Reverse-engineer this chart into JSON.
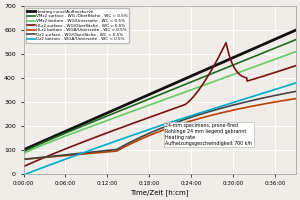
{
  "xlabel": "Time/Zeit [h:cm]",
  "ylim": [
    0,
    700
  ],
  "xlim": [
    0,
    2340
  ],
  "yticks": [
    0,
    100,
    200,
    300,
    400,
    500,
    600,
    700
  ],
  "xticks": [
    0,
    360,
    720,
    1080,
    1440,
    1800,
    2160
  ],
  "xtick_labels": [
    "0:00:00",
    "0:06:00",
    "0:12:00",
    "0:18:00",
    "0:24:00",
    "0:30:00",
    "0:36:00"
  ],
  "annotation": "24-mm specimens, prone-fired\nRohlinge 24 mm liegend gebrannt\nHeating rate\nAufheizungsgeschwindigkeit 700 k/h",
  "legend": [
    {
      "label": "Heating curve/Aufheizkurve",
      "color": "#111111",
      "lw": 2.0
    },
    {
      "label": "VMz2 surface - WG /Oberfläche - WC < 0.5%",
      "color": "#1e6b1e",
      "lw": 1.2
    },
    {
      "label": "VMz2 bottom - WG/Unterseite - WC < 0.5%",
      "color": "#66cc66",
      "lw": 1.2
    },
    {
      "label": "HLz2 surface - WG/Oberfläche - WC < 0.5%",
      "color": "#7a1010",
      "lw": 1.2
    },
    {
      "label": "HLz2 bottom - WGA/Unterseite - WC < 0.5%",
      "color": "#b84000",
      "lw": 1.2
    },
    {
      "label": "Dz2 surface - WG/Oberfläche - WC < 0.5%",
      "color": "#444444",
      "lw": 1.2
    },
    {
      "label": "Dz2 bottom - WGA/Unterseite - WC < 0.5%",
      "color": "#00aacc",
      "lw": 1.2
    }
  ],
  "bg_color": "#f0ede8",
  "grid_color": "#ffffff"
}
